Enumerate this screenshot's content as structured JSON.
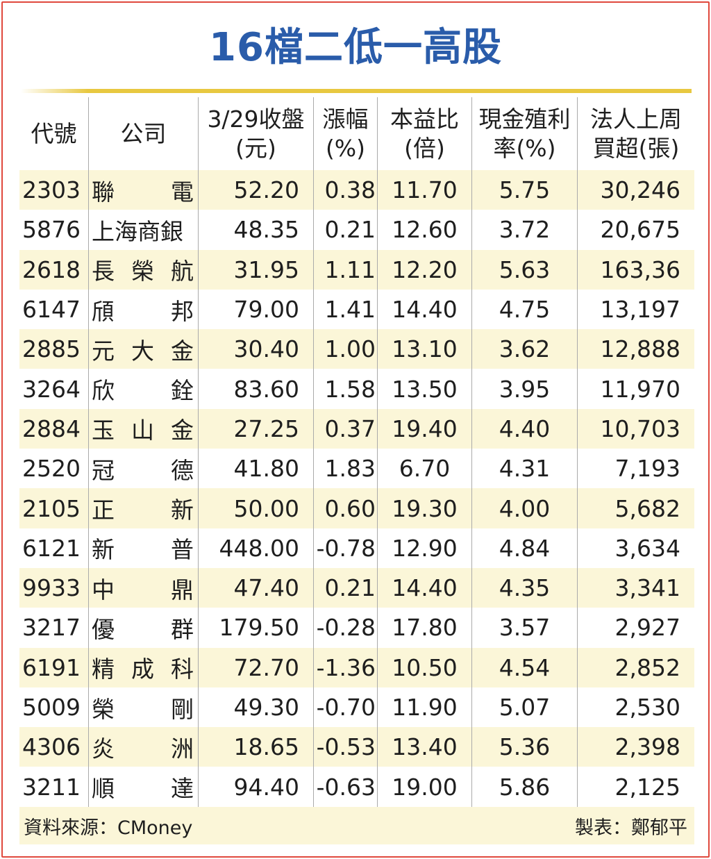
{
  "title": "16檔二低一高股",
  "headers": {
    "code": "代號",
    "company": "公司",
    "close_1": "3/29收盤",
    "close_2": "(元)",
    "change_1": "漲幅",
    "change_2": "(%)",
    "pe_1": "本益比",
    "pe_2": "(倍)",
    "yield_1": "現金殖利",
    "yield_2": "率(%)",
    "net_1": "法人上周",
    "net_2": "買超(張)"
  },
  "rows": [
    {
      "code": "2303",
      "company": [
        "聯",
        "電"
      ],
      "close": "52.20",
      "change": "0.38",
      "pe": "11.70",
      "yield": "5.75",
      "net": "30,246"
    },
    {
      "code": "5876",
      "company": [
        "上海商銀"
      ],
      "close": "48.35",
      "change": "0.21",
      "pe": "12.60",
      "yield": "3.72",
      "net": "20,675"
    },
    {
      "code": "2618",
      "company": [
        "長",
        "榮",
        "航"
      ],
      "close": "31.95",
      "change": "1.11",
      "pe": "12.20",
      "yield": "5.63",
      "net": "163,36"
    },
    {
      "code": "6147",
      "company": [
        "頎",
        "邦"
      ],
      "close": "79.00",
      "change": "1.41",
      "pe": "14.40",
      "yield": "4.75",
      "net": "13,197"
    },
    {
      "code": "2885",
      "company": [
        "元",
        "大",
        "金"
      ],
      "close": "30.40",
      "change": "1.00",
      "pe": "13.10",
      "yield": "3.62",
      "net": "12,888"
    },
    {
      "code": "3264",
      "company": [
        "欣",
        "銓"
      ],
      "close": "83.60",
      "change": "1.58",
      "pe": "13.50",
      "yield": "3.95",
      "net": "11,970"
    },
    {
      "code": "2884",
      "company": [
        "玉",
        "山",
        "金"
      ],
      "close": "27.25",
      "change": "0.37",
      "pe": "19.40",
      "yield": "4.40",
      "net": "10,703"
    },
    {
      "code": "2520",
      "company": [
        "冠",
        "德"
      ],
      "close": "41.80",
      "change": "1.83",
      "pe": "6.70",
      "yield": "4.31",
      "net": "7,193"
    },
    {
      "code": "2105",
      "company": [
        "正",
        "新"
      ],
      "close": "50.00",
      "change": "0.60",
      "pe": "19.30",
      "yield": "4.00",
      "net": "5,682"
    },
    {
      "code": "6121",
      "company": [
        "新",
        "普"
      ],
      "close": "448.00",
      "change": "-0.78",
      "pe": "12.90",
      "yield": "4.84",
      "net": "3,634"
    },
    {
      "code": "9933",
      "company": [
        "中",
        "鼎"
      ],
      "close": "47.40",
      "change": "0.21",
      "pe": "14.40",
      "yield": "4.35",
      "net": "3,341"
    },
    {
      "code": "3217",
      "company": [
        "優",
        "群"
      ],
      "close": "179.50",
      "change": "-0.28",
      "pe": "17.80",
      "yield": "3.57",
      "net": "2,927"
    },
    {
      "code": "6191",
      "company": [
        "精",
        "成",
        "科"
      ],
      "close": "72.70",
      "change": "-1.36",
      "pe": "10.50",
      "yield": "4.54",
      "net": "2,852"
    },
    {
      "code": "5009",
      "company": [
        "榮",
        "剛"
      ],
      "close": "49.30",
      "change": "-0.70",
      "pe": "11.90",
      "yield": "5.07",
      "net": "2,530"
    },
    {
      "code": "4306",
      "company": [
        "炎",
        "洲"
      ],
      "close": "18.65",
      "change": "-0.53",
      "pe": "13.40",
      "yield": "5.36",
      "net": "2,398"
    },
    {
      "code": "3211",
      "company": [
        "順",
        "達"
      ],
      "close": "94.40",
      "change": "-0.63",
      "pe": "19.00",
      "yield": "5.86",
      "net": "2,125"
    }
  ],
  "footer": {
    "source": "資料來源：CMoney",
    "author": "製表：鄭郁平"
  },
  "colors": {
    "title": "#2a5caa",
    "gold_rule": "#e8c840",
    "row_shade": "#fbf6d8",
    "frame": "#e0483c"
  }
}
